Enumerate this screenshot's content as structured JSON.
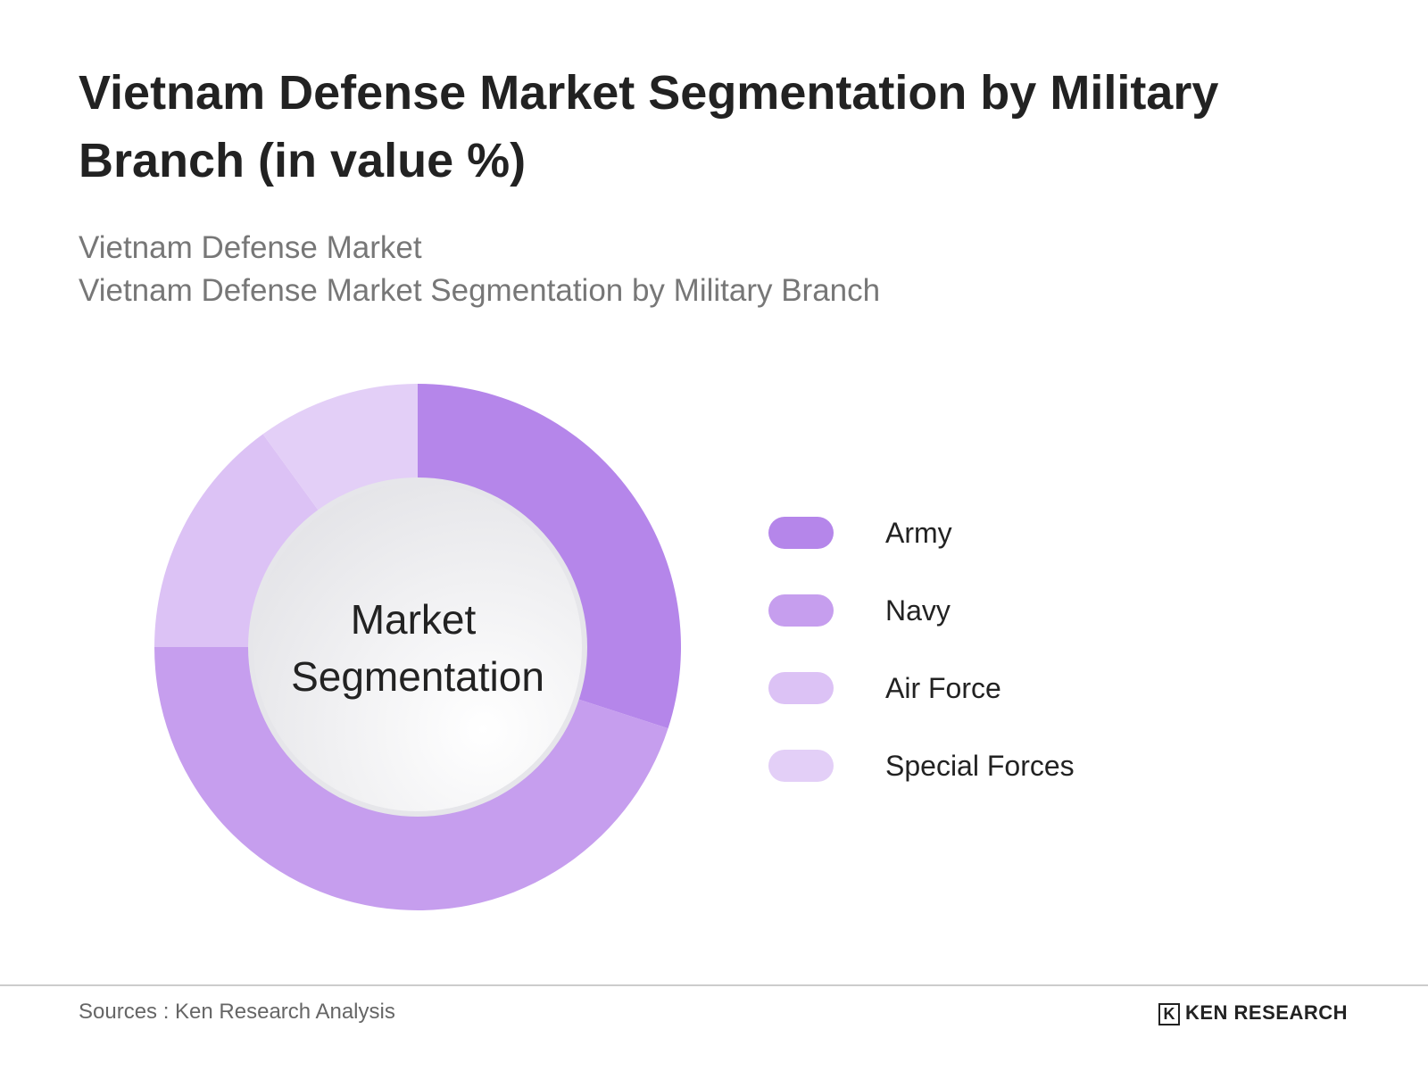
{
  "chart_data": {
    "type": "pie",
    "title": "Vietnam Defense Market Segmentation by Military Branch (in value %)",
    "subtitle": [
      "Vietnam Defense Market",
      "Vietnam Defense Market Segmentation by Military Branch"
    ],
    "center_label": [
      "Market",
      "Segmentation"
    ],
    "categories": [
      "Army",
      "Navy",
      "Air Force",
      "Special Forces"
    ],
    "values": [
      30,
      45,
      15,
      10
    ],
    "colors": [
      "#b586ea",
      "#c69eee",
      "#dcc2f5",
      "#e3cff7"
    ],
    "donut": true,
    "source": "Sources : Ken Research Analysis",
    "logo": "KEN RESEARCH"
  }
}
